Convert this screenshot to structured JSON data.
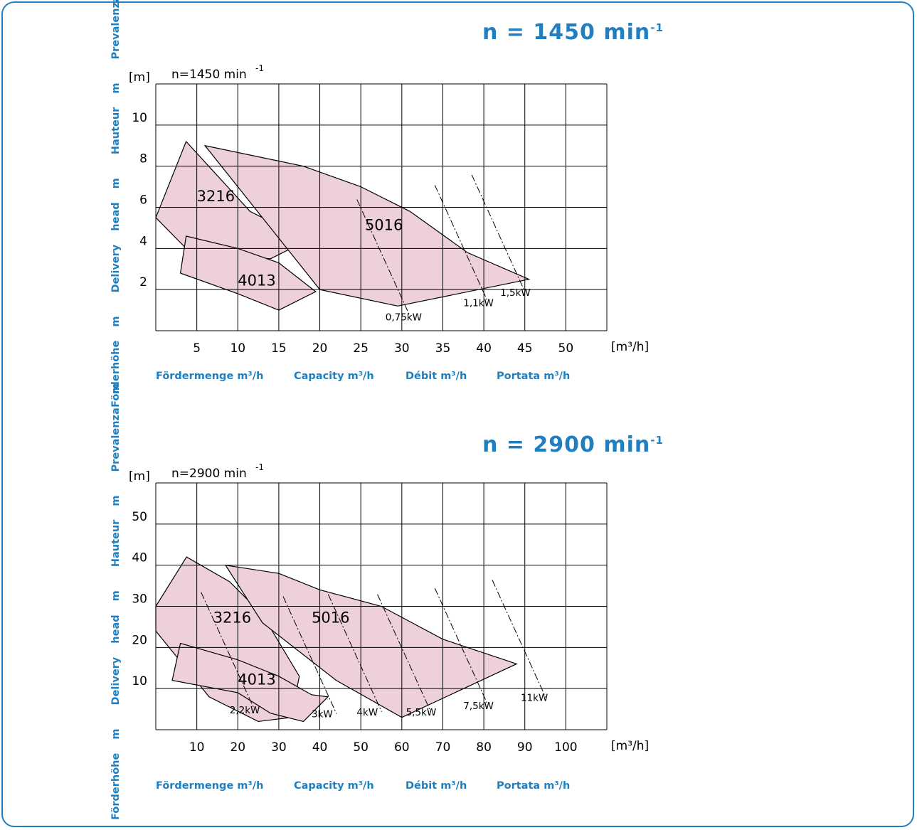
{
  "axis_labels": {
    "y_side": [
      "Förderhöhe m",
      "Delivery head m",
      "Hauteur m",
      "Prevalenza m"
    ],
    "x_bottom": [
      "Fördermenge m³/h",
      "Capacity m³/h",
      "Débit m³/h",
      "Portata m³/h"
    ]
  },
  "colors": {
    "accent": "#1f7fc0",
    "fill": "#eecfdc",
    "grid": "#000000"
  },
  "chart_data": [
    {
      "type": "area",
      "title": "n = 1450 min-1",
      "title_text": "n = 1450 min",
      "title_sup": "-1",
      "inner_title": "n=1450 min",
      "inner_title_sup": "-1",
      "y_unit": "[m]",
      "x_unit": "[m³/h]",
      "xlim": [
        0,
        55
      ],
      "ylim": [
        0,
        12
      ],
      "x_ticks": [
        5,
        10,
        15,
        20,
        25,
        30,
        35,
        40,
        45,
        50
      ],
      "y_ticks": [
        2,
        4,
        6,
        8,
        10
      ],
      "grid": true,
      "series": [
        {
          "name": "3216",
          "label_at": [
            5,
            6.3
          ],
          "polygon": [
            [
              0,
              5.5
            ],
            [
              3.7,
              9.2
            ],
            [
              11.5,
              5.8
            ],
            [
              18.5,
              4.4
            ],
            [
              14,
              3.5
            ],
            [
              10,
              3.6
            ],
            [
              3.7,
              4.0
            ]
          ]
        },
        {
          "name": "4013",
          "label_at": [
            10,
            2.2
          ],
          "polygon": [
            [
              3.7,
              4.6
            ],
            [
              10,
              4
            ],
            [
              15,
              3.3
            ],
            [
              19.5,
              1.9
            ],
            [
              15,
              1
            ],
            [
              10,
              1.8
            ],
            [
              3,
              2.8
            ]
          ]
        },
        {
          "name": "5016",
          "label_at": [
            25.5,
            4.9
          ],
          "polygon": [
            [
              6,
              9
            ],
            [
              18,
              8
            ],
            [
              25,
              7
            ],
            [
              31,
              5.8
            ],
            [
              38,
              3.8
            ],
            [
              45.5,
              2.5
            ],
            [
              29.5,
              1.2
            ],
            [
              20,
              2
            ]
          ]
        }
      ],
      "power_lines": [
        {
          "label": "0,75kW",
          "label_at": [
            28,
            0.5
          ]
        },
        {
          "label": "1,1kW",
          "label_at": [
            37.5,
            1.2
          ]
        },
        {
          "label": "1,5kW",
          "label_at": [
            42,
            1.7
          ]
        }
      ]
    },
    {
      "type": "area",
      "title": "n = 2900 min-1",
      "title_text": "n = 2900 min",
      "title_sup": "-1",
      "inner_title": "n=2900 min",
      "inner_title_sup": "-1",
      "y_unit": "[m]",
      "x_unit": "[m³/h]",
      "xlim": [
        0,
        110
      ],
      "ylim": [
        0,
        60
      ],
      "x_ticks": [
        10,
        20,
        30,
        40,
        50,
        60,
        70,
        80,
        90,
        100
      ],
      "y_ticks": [
        10,
        20,
        30,
        40,
        50
      ],
      "grid": true,
      "series": [
        {
          "name": "3216",
          "label_at": [
            14,
            26
          ]
        },
        {
          "name": "4013",
          "label_at": [
            20,
            11
          ]
        },
        {
          "name": "5016",
          "label_at": [
            38,
            26
          ]
        }
      ],
      "power_lines": [
        {
          "label": "2,2kW",
          "label_at": [
            18,
            4
          ]
        },
        {
          "label": "3kW",
          "label_at": [
            38,
            3
          ]
        },
        {
          "label": "4kW",
          "label_at": [
            49,
            3.5
          ]
        },
        {
          "label": "5,5kW",
          "label_at": [
            61,
            3.5
          ]
        },
        {
          "label": "7,5kW",
          "label_at": [
            75,
            5
          ]
        },
        {
          "label": "11kW",
          "label_at": [
            89,
            7
          ]
        }
      ]
    }
  ]
}
